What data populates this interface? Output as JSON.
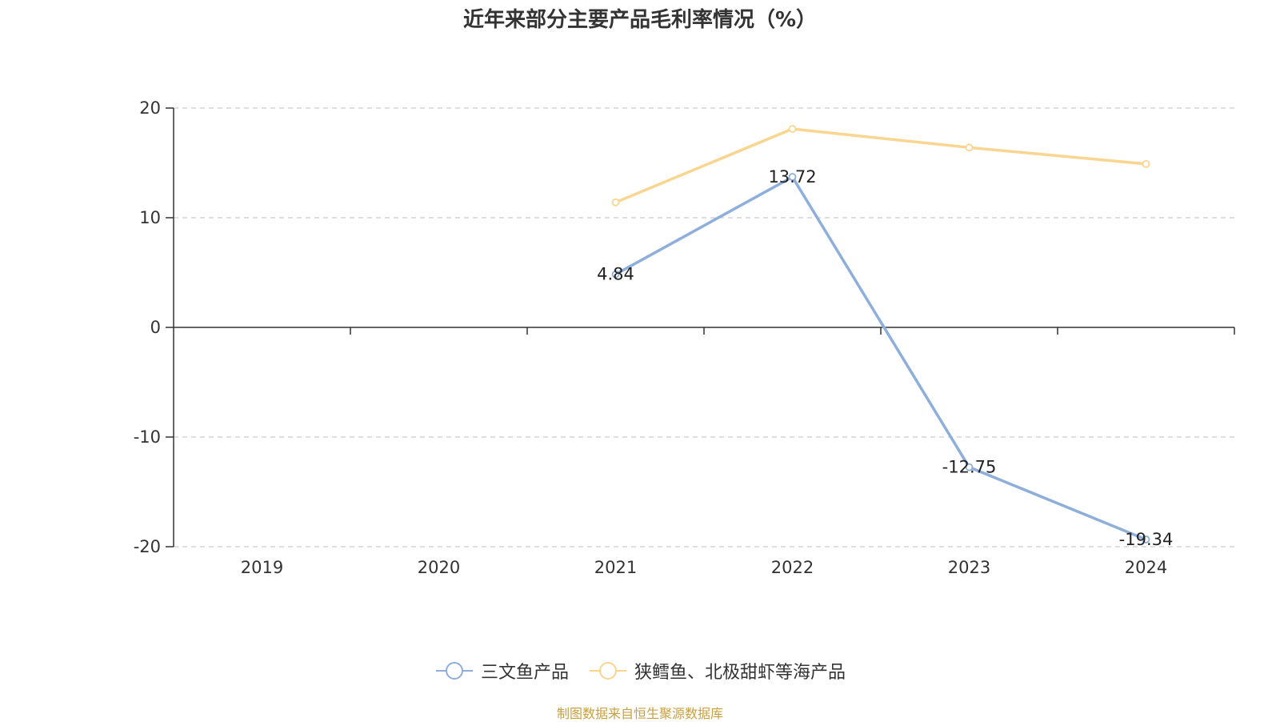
{
  "title": "近年来部分主要产品毛利率情况（%）",
  "source": "制图数据来自恒生聚源数据库",
  "chart_data": {
    "type": "line",
    "categories": [
      "2019",
      "2020",
      "2021",
      "2022",
      "2023",
      "2024"
    ],
    "ylim": [
      -20,
      20
    ],
    "yticks": [
      20,
      10,
      0,
      -10,
      -20
    ],
    "grid": true,
    "legend_position": "bottom-center",
    "series": [
      {
        "name": "三文鱼产品",
        "color": "#8eaedb",
        "values": [
          null,
          null,
          4.84,
          13.72,
          -12.75,
          -19.34
        ],
        "labels": [
          "",
          "",
          "4.84",
          "13.72",
          "-12.75",
          "-19.34"
        ]
      },
      {
        "name": "狭鳕鱼、北极甜虾等海产品",
        "color": "#fad590",
        "values": [
          null,
          null,
          11.4,
          18.1,
          16.4,
          14.9
        ],
        "labels": [
          "",
          "",
          "",
          "",
          "",
          ""
        ]
      }
    ]
  }
}
